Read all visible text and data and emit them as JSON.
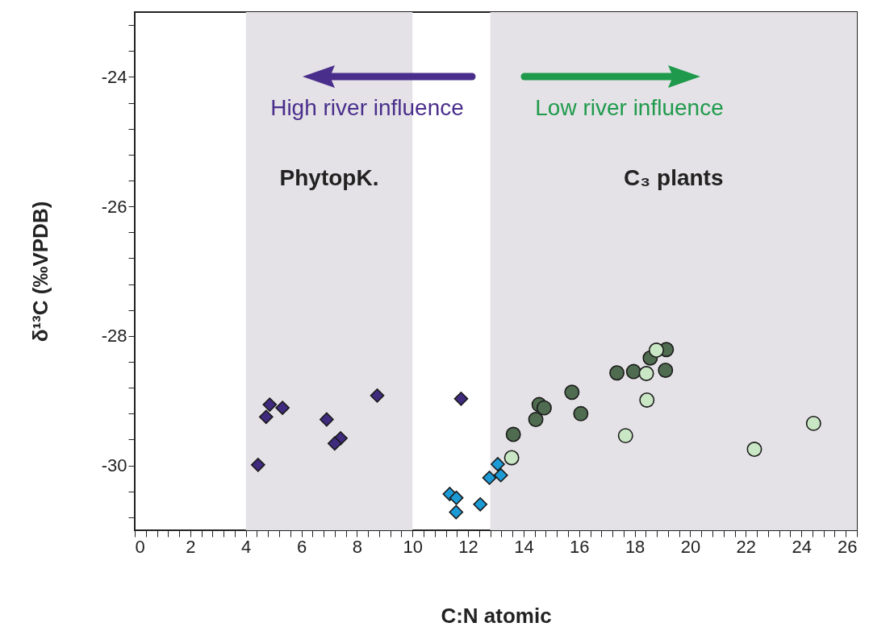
{
  "chart_data": {
    "type": "scatter",
    "xlabel": "C:N atomic",
    "ylabel": "δ¹³C (‰VPDB)",
    "xlim": [
      0,
      26
    ],
    "ylim": [
      -31,
      -23
    ],
    "xticks": [
      0,
      {
        "value": 0.4,
        "label": null
      },
      {
        "value": 0.8,
        "label": null
      },
      {
        "value": 1.2,
        "label": null
      },
      {
        "value": 1.6,
        "label": null
      },
      2,
      {
        "value": 2.4,
        "label": null
      },
      {
        "value": 2.8,
        "label": null
      },
      {
        "value": 3.2,
        "label": null
      },
      {
        "value": 3.6,
        "label": null
      },
      4,
      {
        "value": 4.4,
        "label": null
      },
      {
        "value": 4.8,
        "label": null
      },
      {
        "value": 5.2,
        "label": null
      },
      {
        "value": 5.6,
        "label": null
      },
      6,
      {
        "value": 6.4,
        "label": null
      },
      {
        "value": 6.8,
        "label": null
      },
      {
        "value": 7.2,
        "label": null
      },
      {
        "value": 7.6,
        "label": null
      },
      8,
      {
        "value": 8.4,
        "label": null
      },
      {
        "value": 8.8,
        "label": null
      },
      {
        "value": 9.2,
        "label": null
      },
      {
        "value": 9.6,
        "label": null
      },
      10,
      {
        "value": 10.4,
        "label": null
      },
      {
        "value": 10.8,
        "label": null
      },
      {
        "value": 11.2,
        "label": null
      },
      {
        "value": 11.6,
        "label": null
      },
      12,
      {
        "value": 12.4,
        "label": null
      },
      {
        "value": 12.8,
        "label": null
      },
      {
        "value": 13.2,
        "label": null
      },
      {
        "value": 13.6,
        "label": null
      },
      14,
      {
        "value": 14.4,
        "label": null
      },
      {
        "value": 14.8,
        "label": null
      },
      {
        "value": 15.2,
        "label": null
      },
      {
        "value": 15.6,
        "label": null
      },
      16,
      {
        "value": 16.4,
        "label": null
      },
      {
        "value": 16.8,
        "label": null
      },
      {
        "value": 17.2,
        "label": null
      },
      {
        "value": 17.6,
        "label": null
      },
      18,
      {
        "value": 18.4,
        "label": null
      },
      {
        "value": 18.8,
        "label": null
      },
      {
        "value": 19.2,
        "label": null
      },
      {
        "value": 19.6,
        "label": null
      },
      20,
      {
        "value": 20.4,
        "label": null
      },
      {
        "value": 20.8,
        "label": null
      },
      {
        "value": 21.2,
        "label": null
      },
      {
        "value": 21.6,
        "label": null
      },
      22,
      {
        "value": 22.4,
        "label": null
      },
      {
        "value": 22.8,
        "label": null
      },
      {
        "value": 23.2,
        "label": null
      },
      {
        "value": 23.6,
        "label": null
      },
      24,
      {
        "value": 24.4,
        "label": null
      },
      {
        "value": 24.8,
        "label": null
      },
      {
        "value": 25.2,
        "label": null
      },
      {
        "value": 25.6,
        "label": null
      },
      26
    ],
    "yticks": [
      {
        "value": -30.8,
        "label": null
      },
      {
        "value": -30.4,
        "label": null
      },
      -30,
      {
        "value": -29.6,
        "label": null
      },
      {
        "value": -29.2,
        "label": null
      },
      {
        "value": -28.8,
        "label": null
      },
      {
        "value": -28.4,
        "label": null
      },
      -28,
      {
        "value": -27.6,
        "label": null
      },
      {
        "value": -27.2,
        "label": null
      },
      {
        "value": -26.8,
        "label": null
      },
      {
        "value": -26.4,
        "label": null
      },
      -26,
      {
        "value": -25.6,
        "label": null
      },
      {
        "value": -25.2,
        "label": null
      },
      {
        "value": -24.8,
        "label": null
      },
      {
        "value": -24.4,
        "label": null
      },
      -24,
      {
        "value": -23.6,
        "label": null
      },
      {
        "value": -23.2,
        "label": null
      }
    ],
    "series": [
      {
        "color": "#3f2a7e",
        "marker": "diamond",
        "x": [
          4.86,
          5.32,
          4.73,
          6.91,
          7.41,
          7.2,
          4.44,
          8.73,
          11.75
        ],
        "values": [
          -29.06,
          -29.11,
          -29.25,
          -29.29,
          -29.58,
          -29.66,
          -29.99,
          -28.92,
          -28.97
        ]
      },
      {
        "color": "#1b9ad6",
        "marker": "diamond",
        "x": [
          11.34,
          11.58,
          11.57,
          12.44,
          12.77,
          13.18,
          13.07
        ],
        "values": [
          -30.44,
          -30.5,
          -30.72,
          -30.6,
          -30.19,
          -30.15,
          -29.98
        ]
      },
      {
        "color": "#4f6b50",
        "marker": "circle",
        "x": [
          13.63,
          14.44,
          14.56,
          14.74,
          15.74,
          16.06,
          17.36,
          17.96,
          18.56,
          19.14,
          19.11
        ],
        "values": [
          -29.52,
          -29.29,
          -29.06,
          -29.11,
          -28.87,
          -29.2,
          -28.57,
          -28.55,
          -28.34,
          -28.21,
          -28.53
        ]
      },
      {
        "color": "#c9e7c4",
        "marker": "circle",
        "x": [
          13.57,
          17.67,
          18.44,
          18.42,
          18.78,
          22.31,
          24.44
        ],
        "values": [
          -29.88,
          -29.54,
          -28.99,
          -28.58,
          -28.22,
          -29.75,
          -29.35
        ]
      }
    ],
    "bands": [
      {
        "axis": "x",
        "from": 4,
        "to": 10,
        "label": "PhytopK.",
        "color": "#e4e2e6"
      },
      {
        "axis": "x",
        "from": 12.8,
        "to": 26,
        "label": "C₃ plants",
        "color": "#e4e2e6"
      }
    ],
    "annotations": [
      "High river influence",
      "Low river influence"
    ],
    "grid": false
  }
}
